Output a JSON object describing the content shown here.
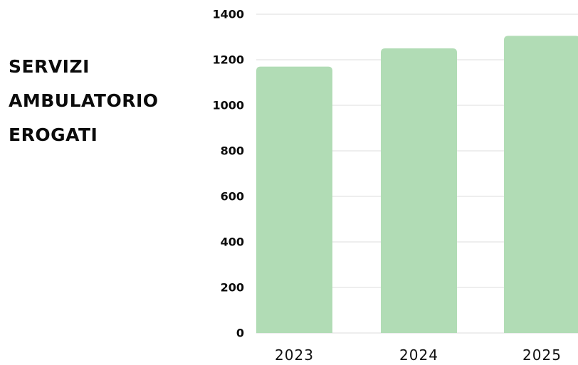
{
  "chart_data": {
    "type": "bar",
    "title_lines": [
      "SERVIZI",
      "AMBULATORIO",
      "EROGATI"
    ],
    "categories": [
      "2023",
      "2024",
      "2025"
    ],
    "values": [
      1170,
      1250,
      1305
    ],
    "ylim": [
      0,
      1400
    ],
    "yticks": [
      0,
      200,
      400,
      600,
      800,
      1000,
      1200,
      1400
    ],
    "grid": true,
    "legend": "none",
    "bar_color": "#b1dcb5",
    "grid_color": "#dcdcdc"
  }
}
